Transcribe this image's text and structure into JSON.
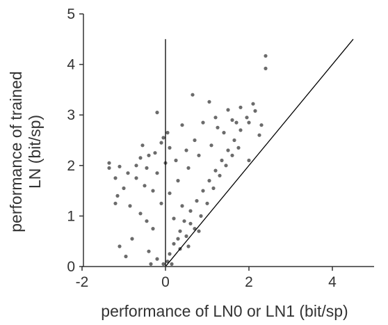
{
  "chart_data": {
    "type": "scatter",
    "title": "",
    "xlabel": "performance of LN0 or LN1 (bit/sp)",
    "ylabel_lines": [
      "performance of trained",
      "LN (bit/sp)"
    ],
    "xlim": [
      -2,
      5
    ],
    "ylim": [
      0,
      5
    ],
    "x_ticks": [
      "-2",
      "0",
      "2",
      "4"
    ],
    "x_tick_values": [
      -2,
      0,
      2,
      4
    ],
    "y_ticks": [
      "0",
      "1",
      "2",
      "3",
      "4",
      "5"
    ],
    "y_tick_values": [
      0,
      1,
      2,
      3,
      4,
      5
    ],
    "grid": false,
    "legend": "none",
    "point_color": "#3a3a3a",
    "reference_lines": [
      {
        "kind": "identity",
        "x": [
          0,
          4.5
        ],
        "y": [
          0,
          4.5
        ]
      },
      {
        "kind": "vertical",
        "x": [
          0,
          0
        ],
        "y": [
          0,
          4.5
        ]
      }
    ],
    "series": [
      {
        "points": [
          [
            2.4,
            4.17
          ],
          [
            2.4,
            3.92
          ],
          [
            0.65,
            3.4
          ],
          [
            1.05,
            3.26
          ],
          [
            -0.2,
            3.05
          ],
          [
            1.5,
            3.1
          ],
          [
            1.8,
            3.15
          ],
          [
            2.1,
            3.22
          ],
          [
            2.15,
            3.08
          ],
          [
            1.95,
            2.95
          ],
          [
            1.6,
            2.9
          ],
          [
            1.2,
            2.95
          ],
          [
            0.9,
            2.85
          ],
          [
            0.4,
            2.8
          ],
          [
            0.05,
            2.65
          ],
          [
            -0.05,
            2.55
          ],
          [
            -0.1,
            2.45
          ],
          [
            0.1,
            2.35
          ],
          [
            -0.25,
            2.25
          ],
          [
            -0.4,
            2.2
          ],
          [
            -0.6,
            2.15
          ],
          [
            -1.35,
            2.05
          ],
          [
            -1.35,
            1.95
          ],
          [
            -1.1,
            1.98
          ],
          [
            -0.9,
            1.85
          ],
          [
            -0.7,
            1.75
          ],
          [
            -0.5,
            1.6
          ],
          [
            -0.3,
            1.5
          ],
          [
            -1.2,
            1.75
          ],
          [
            -1.0,
            1.55
          ],
          [
            -1.15,
            1.4
          ],
          [
            -1.2,
            1.25
          ],
          [
            -0.85,
            1.2
          ],
          [
            -0.6,
            1.05
          ],
          [
            -0.45,
            0.9
          ],
          [
            -0.3,
            0.75
          ],
          [
            -0.8,
            0.55
          ],
          [
            -1.1,
            0.4
          ],
          [
            -0.95,
            0.2
          ],
          [
            -0.4,
            0.3
          ],
          [
            -0.35,
            0.05
          ],
          [
            -0.2,
            0.15
          ],
          [
            0.1,
            0.25
          ],
          [
            0.2,
            0.45
          ],
          [
            0.35,
            0.7
          ],
          [
            0.45,
            0.9
          ],
          [
            0.6,
            1.1
          ],
          [
            0.75,
            1.3
          ],
          [
            0.9,
            1.5
          ],
          [
            1.05,
            1.7
          ],
          [
            1.2,
            1.9
          ],
          [
            1.35,
            2.1
          ],
          [
            1.5,
            2.3
          ],
          [
            1.65,
            2.5
          ],
          [
            1.8,
            2.7
          ],
          [
            2.0,
            2.85
          ],
          [
            2.25,
            2.6
          ],
          [
            2.3,
            2.8
          ],
          [
            1.4,
            2.65
          ],
          [
            1.1,
            2.4
          ],
          [
            0.8,
            2.2
          ],
          [
            0.55,
            1.95
          ],
          [
            0.3,
            1.7
          ],
          [
            0.1,
            1.45
          ],
          [
            -0.1,
            1.25
          ],
          [
            0.4,
            1.2
          ],
          [
            0.6,
            0.85
          ],
          [
            0.85,
            1.0
          ],
          [
            1.0,
            1.25
          ],
          [
            1.15,
            1.55
          ],
          [
            1.3,
            1.8
          ],
          [
            1.45,
            2.0
          ],
          [
            1.6,
            2.2
          ],
          [
            2.0,
            2.1
          ],
          [
            1.75,
            2.35
          ],
          [
            0.2,
            0.95
          ],
          [
            0.3,
            0.55
          ],
          [
            0.5,
            0.6
          ],
          [
            0.7,
            0.75
          ],
          [
            0.15,
            0.05
          ],
          [
            0.05,
            0.1
          ],
          [
            -0.05,
            0.05
          ],
          [
            0.35,
            0.35
          ],
          [
            0.55,
            0.4
          ],
          [
            0.8,
            0.7
          ],
          [
            -0.55,
            2.4
          ],
          [
            -0.45,
            1.95
          ],
          [
            -0.2,
            1.85
          ],
          [
            0.0,
            2.05
          ],
          [
            0.25,
            2.1
          ],
          [
            0.5,
            2.3
          ],
          [
            0.7,
            2.5
          ],
          [
            1.25,
            2.75
          ],
          [
            1.7,
            2.85
          ],
          [
            -0.7,
            2.0
          ]
        ]
      }
    ]
  }
}
